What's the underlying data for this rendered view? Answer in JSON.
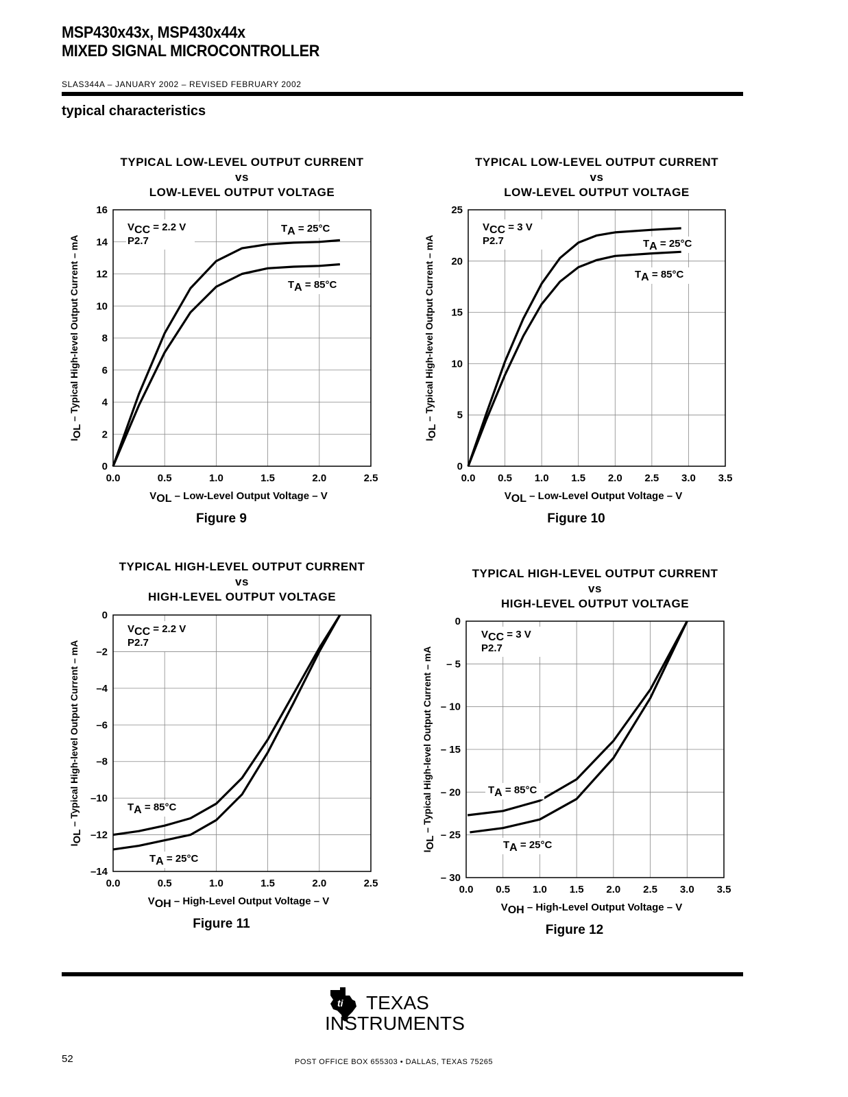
{
  "header": {
    "title_line1": "MSP430x43x, MSP430x44x",
    "title_line2": "MIXED SIGNAL MICROCONTROLLER",
    "doc_code": "SLAS344A – JANUARY 2002 – REVISED FEBRUARY 2002",
    "section": "typical characteristics"
  },
  "footer": {
    "page_number": "52",
    "logo_text_line1": "TEXAS",
    "logo_text_line2": "INSTRUMENTS",
    "address": "POST OFFICE BOX 655303 • DALLAS, TEXAS 75265"
  },
  "chart_data": [
    {
      "type": "line",
      "title": [
        "TYPICAL LOW-LEVEL OUTPUT CURRENT",
        "vs",
        "LOW-LEVEL OUTPUT VOLTAGE"
      ],
      "figure_label": "Figure 9",
      "xlabel": {
        "sym": "V",
        "sub": "OL",
        "rest": " – Low-Level Output Voltage – V"
      },
      "ylabel": {
        "sym": "I",
        "sub": "OL",
        "rest": " – Typical High-level Output Current – mA"
      },
      "xlim": [
        0,
        2.5
      ],
      "ylim": [
        0,
        16
      ],
      "xticks": [
        0,
        0.5,
        1,
        1.5,
        2,
        2.5
      ],
      "xtick_labels": [
        "0.0",
        "0.5",
        "1.0",
        "1.5",
        "2.0",
        "2.5"
      ],
      "yticks": [
        0,
        2,
        4,
        6,
        8,
        10,
        12,
        14,
        16
      ],
      "ytick_labels": [
        "0",
        "2",
        "4",
        "6",
        "8",
        "10",
        "12",
        "14",
        "16"
      ],
      "grid": true,
      "conditions": {
        "vcc_sym": "V",
        "vcc_sub": "CC",
        "vcc_rest": " = 2.2 V",
        "pin": "P2.7"
      },
      "series": [
        {
          "name": "T_A = 25°C",
          "label_sym": "T",
          "label_sub": "A",
          "label_rest": " = 25°C",
          "x": [
            0,
            0.25,
            0.5,
            0.75,
            1.0,
            1.25,
            1.5,
            1.75,
            2.0,
            2.2
          ],
          "y": [
            0,
            4.5,
            8.3,
            11.1,
            12.8,
            13.6,
            13.85,
            13.95,
            14.0,
            14.1
          ]
        },
        {
          "name": "T_A = 85°C",
          "label_sym": "T",
          "label_sub": "A",
          "label_rest": " = 85°C",
          "x": [
            0,
            0.25,
            0.5,
            0.75,
            1.0,
            1.25,
            1.5,
            1.75,
            2.0,
            2.2
          ],
          "y": [
            0,
            3.8,
            7.1,
            9.6,
            11.2,
            12.0,
            12.35,
            12.45,
            12.5,
            12.6
          ]
        }
      ]
    },
    {
      "type": "line",
      "title": [
        "TYPICAL LOW-LEVEL OUTPUT CURRENT",
        "vs",
        "LOW-LEVEL OUTPUT VOLTAGE"
      ],
      "figure_label": "Figure 10",
      "xlabel": {
        "sym": "V",
        "sub": "OL",
        "rest": " – Low-Level Output Voltage – V"
      },
      "ylabel": {
        "sym": "I",
        "sub": "OL",
        "rest": " – Typical High-level Output Current – mA"
      },
      "xlim": [
        0,
        3.5
      ],
      "ylim": [
        0,
        25
      ],
      "xticks": [
        0,
        0.5,
        1,
        1.5,
        2,
        2.5,
        3,
        3.5
      ],
      "xtick_labels": [
        "0.0",
        "0.5",
        "1.0",
        "1.5",
        "2.0",
        "2.5",
        "3.0",
        "3.5"
      ],
      "yticks": [
        0,
        5,
        10,
        15,
        20,
        25
      ],
      "ytick_labels": [
        "0",
        "5",
        "10",
        "15",
        "20",
        "25"
      ],
      "grid": true,
      "conditions": {
        "vcc_sym": "V",
        "vcc_sub": "CC",
        "vcc_rest": " = 3 V",
        "pin": "P2.7"
      },
      "series": [
        {
          "name": "T_A = 25°C",
          "label_sym": "T",
          "label_sub": "A",
          "label_rest": " = 25°C",
          "x": [
            0,
            0.25,
            0.5,
            0.75,
            1.0,
            1.25,
            1.5,
            1.75,
            2.0,
            2.5,
            2.9
          ],
          "y": [
            0,
            5.2,
            10.2,
            14.4,
            17.8,
            20.3,
            21.8,
            22.5,
            22.8,
            23.05,
            23.2
          ]
        },
        {
          "name": "T_A = 85°C",
          "label_sym": "T",
          "label_sub": "A",
          "label_rest": " = 85°C",
          "x": [
            0,
            0.25,
            0.5,
            0.75,
            1.0,
            1.25,
            1.5,
            1.75,
            2.0,
            2.5,
            2.9
          ],
          "y": [
            0,
            4.6,
            8.9,
            12.7,
            15.8,
            18.0,
            19.4,
            20.1,
            20.5,
            20.75,
            20.9
          ]
        }
      ]
    },
    {
      "type": "line",
      "title": [
        "TYPICAL HIGH-LEVEL OUTPUT CURRENT",
        "vs",
        "HIGH-LEVEL OUTPUT VOLTAGE"
      ],
      "figure_label": "Figure 11",
      "xlabel": {
        "sym": "V",
        "sub": "OH",
        "rest": " – High-Level Output Voltage – V"
      },
      "ylabel": {
        "sym": "I",
        "sub": "OL",
        "rest": " – Typical High-level Output Current – mA"
      },
      "xlim": [
        0,
        2.5
      ],
      "ylim": [
        -14,
        0
      ],
      "xticks": [
        0,
        0.5,
        1,
        1.5,
        2,
        2.5
      ],
      "xtick_labels": [
        "0.0",
        "0.5",
        "1.0",
        "1.5",
        "2.0",
        "2.5"
      ],
      "yticks": [
        0,
        -2,
        -4,
        -6,
        -8,
        -10,
        -12,
        -14
      ],
      "ytick_labels": [
        "0",
        "–2",
        "–4",
        "–6",
        "–8",
        "–10",
        "–12",
        "–14"
      ],
      "grid": true,
      "conditions": {
        "vcc_sym": "V",
        "vcc_sub": "CC",
        "vcc_rest": " = 2.2 V",
        "pin": "P2.7"
      },
      "series": [
        {
          "name": "T_A = 85°C",
          "label_sym": "T",
          "label_sub": "A",
          "label_rest": " = 85°C",
          "x": [
            0,
            0.25,
            0.5,
            0.75,
            1.0,
            1.25,
            1.5,
            1.75,
            2.0,
            2.2
          ],
          "y": [
            -12.0,
            -11.8,
            -11.5,
            -11.1,
            -10.3,
            -8.9,
            -6.8,
            -4.3,
            -1.8,
            0
          ]
        },
        {
          "name": "T_A = 25°C",
          "label_sym": "T",
          "label_sub": "A",
          "label_rest": " = 25°C",
          "x": [
            0,
            0.25,
            0.5,
            0.75,
            1.0,
            1.25,
            1.5,
            1.75,
            2.0,
            2.2
          ],
          "y": [
            -12.8,
            -12.6,
            -12.3,
            -12.0,
            -11.2,
            -9.8,
            -7.5,
            -4.8,
            -2.0,
            0
          ]
        }
      ]
    },
    {
      "type": "line",
      "title": [
        "TYPICAL HIGH-LEVEL OUTPUT CURRENT",
        "vs",
        "HIGH-LEVEL OUTPUT VOLTAGE"
      ],
      "figure_label": "Figure 12",
      "xlabel": {
        "sym": "V",
        "sub": "OH",
        "rest": " – High-Level Output Voltage – V"
      },
      "ylabel": {
        "sym": "I",
        "sub": "OL",
        "rest": " – Typical High-level Output Current – mA"
      },
      "xlim": [
        0,
        3.5
      ],
      "ylim": [
        -30,
        0
      ],
      "xticks": [
        0,
        0.5,
        1,
        1.5,
        2,
        2.5,
        3,
        3.5
      ],
      "xtick_labels": [
        "0.0",
        "0.5",
        "1.0",
        "1.5",
        "2.0",
        "2.5",
        "3.0",
        "3.5"
      ],
      "yticks": [
        0,
        -5,
        -10,
        -15,
        -20,
        -25,
        -30
      ],
      "ytick_labels": [
        "0",
        "– 5",
        "– 10",
        "– 15",
        "– 20",
        "– 25",
        "– 30"
      ],
      "grid": true,
      "conditions": {
        "vcc_sym": "V",
        "vcc_sub": "CC",
        "vcc_rest": " = 3 V",
        "pin": "P2.7"
      },
      "series": [
        {
          "name": "T_A = 85°C",
          "label_sym": "T",
          "label_sub": "A",
          "label_rest": " = 85°C",
          "x": [
            0.02,
            0.5,
            1.0,
            1.5,
            2.0,
            2.5,
            3.0
          ],
          "y": [
            -22.7,
            -22.2,
            -21.0,
            -18.5,
            -14.0,
            -8.0,
            0
          ]
        },
        {
          "name": "T_A = 25°C",
          "label_sym": "T",
          "label_sub": "A",
          "label_rest": " = 25°C",
          "x": [
            0.05,
            0.5,
            1.0,
            1.5,
            2.0,
            2.5,
            3.0
          ],
          "y": [
            -24.7,
            -24.2,
            -23.2,
            -20.8,
            -16.0,
            -9.0,
            0
          ]
        }
      ]
    }
  ]
}
